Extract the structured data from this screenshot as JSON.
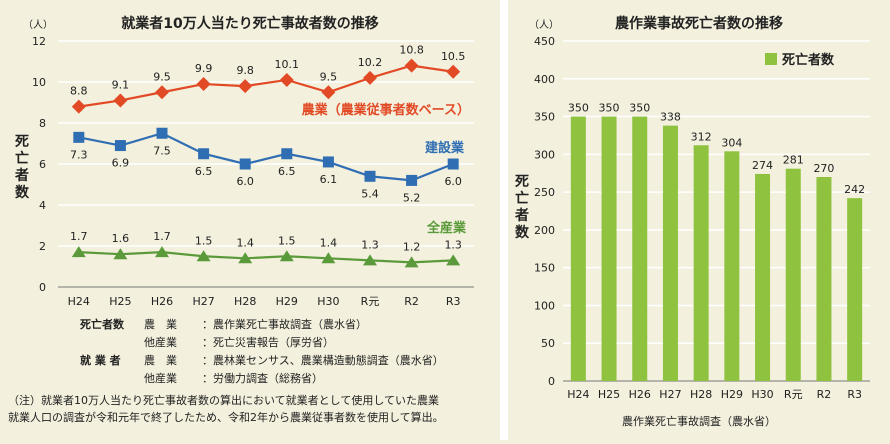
{
  "colors": {
    "background": "#f3f0dd",
    "grid": "#ffffff",
    "agriculture": "#e24a26",
    "construction": "#2f6eb3",
    "all_industries": "#5a9a3a",
    "bar": "#8fc23f"
  },
  "chart_data": [
    {
      "type": "line",
      "title": "就業者10万人当たり死亡事故者数の推移",
      "unit": "（人）",
      "ylabel": "死亡者数",
      "ylim": [
        0,
        12
      ],
      "yticks": [
        0,
        2,
        4,
        6,
        8,
        10,
        12
      ],
      "categories": [
        "H24",
        "H25",
        "H26",
        "H27",
        "H28",
        "H29",
        "H30",
        "R元",
        "R2",
        "R3"
      ],
      "series": [
        {
          "name": "農業（農業従事者数ベース）",
          "marker": "diamond",
          "color": "#e24a26",
          "label_pos": "above",
          "values": [
            8.8,
            9.1,
            9.5,
            9.9,
            9.8,
            10.1,
            9.5,
            10.2,
            10.8,
            10.5
          ]
        },
        {
          "name": "建設業",
          "marker": "square",
          "color": "#2f6eb3",
          "label_pos": "below",
          "values": [
            7.3,
            6.9,
            7.5,
            6.5,
            6.0,
            6.5,
            6.1,
            5.4,
            5.2,
            6.0
          ]
        },
        {
          "name": "全産業",
          "marker": "triangle",
          "color": "#5a9a3a",
          "label_pos": "above",
          "values": [
            1.7,
            1.6,
            1.7,
            1.5,
            1.4,
            1.5,
            1.4,
            1.3,
            1.2,
            1.3
          ]
        }
      ]
    },
    {
      "type": "bar",
      "title": "農作業事故死亡者数の推移",
      "unit": "（人）",
      "ylabel": "死亡者数",
      "ylim": [
        0,
        450
      ],
      "yticks": [
        0,
        50,
        100,
        150,
        200,
        250,
        300,
        350,
        400,
        450
      ],
      "categories": [
        "H24",
        "H25",
        "H26",
        "H27",
        "H28",
        "H29",
        "H30",
        "R元",
        "R2",
        "R3"
      ],
      "series": [
        {
          "name": "死亡者数",
          "color": "#8fc23f",
          "values": [
            350,
            350,
            350,
            338,
            312,
            304,
            274,
            281,
            270,
            242
          ]
        }
      ],
      "legend": "top-right",
      "xlabel": "農作業死亡事故調査（農水省）"
    }
  ],
  "sources": {
    "deaths_label": "死亡者数",
    "workers_label": "就 業 者",
    "rows": [
      {
        "key": "死亡者数",
        "sub": "農　業",
        "text": "：農作業死亡事故調査（農水省）"
      },
      {
        "key": "",
        "sub": "他産業",
        "text": "：死亡災害報告（厚労省）"
      },
      {
        "key": "就 業 者",
        "sub": "農　業",
        "text": "：農林業センサス、農業構造動態調査（農水省）"
      },
      {
        "key": "",
        "sub": "他産業",
        "text": "：労働力調査（総務省）"
      }
    ]
  },
  "note": {
    "line1": "（注）就業者10万人当たり死亡事故者数の算出において就業者として使用していた農業",
    "line2": "就業人口の調査が令和元年で終了したため、令和2年から農業従事者数を使用して算出。"
  }
}
